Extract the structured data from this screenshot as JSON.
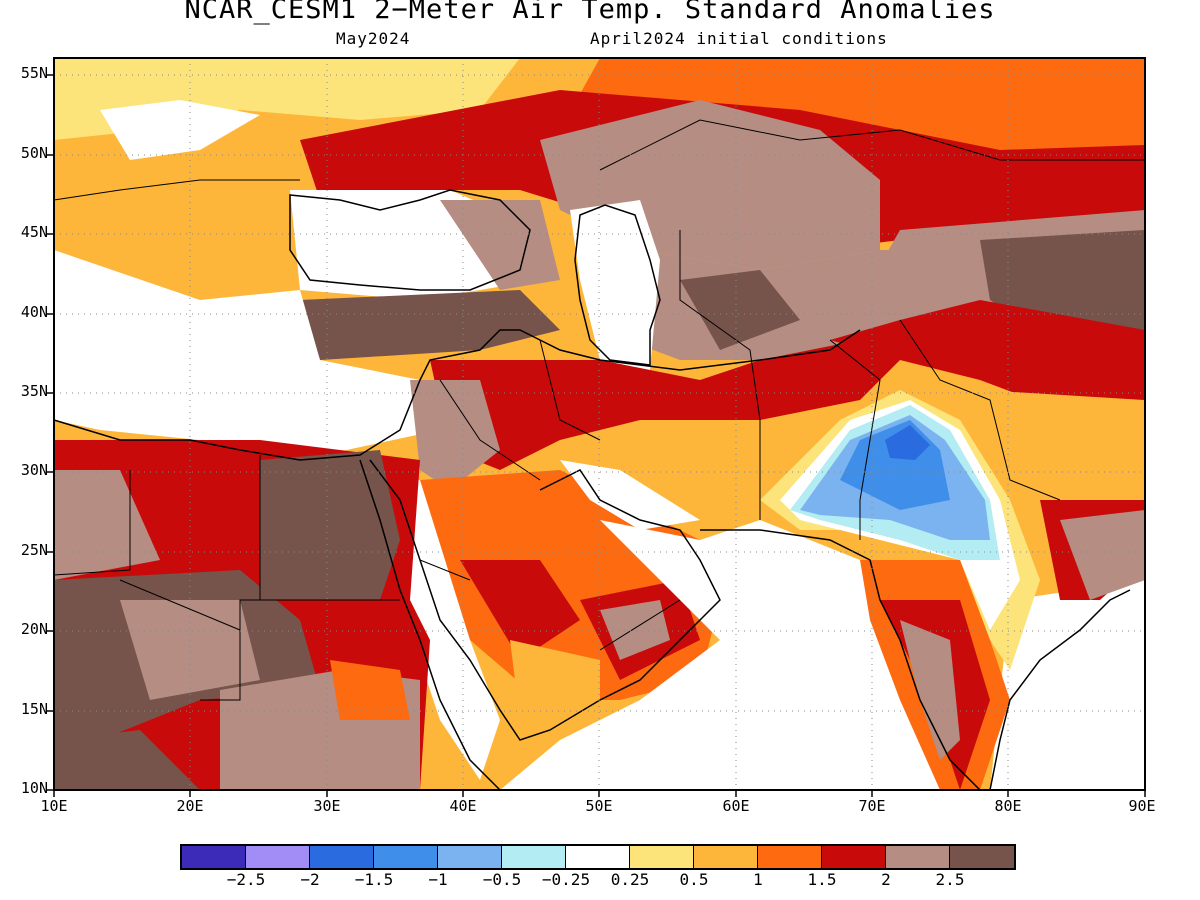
{
  "header": {
    "title": "NCAR_CESM1 2−Meter Air Temp. Standard Anomalies",
    "subtitle_left": "May2024",
    "subtitle_right": "April2024 initial conditions"
  },
  "map": {
    "projection": "lat-lon",
    "extent": {
      "lon_min": 10,
      "lon_max": 90,
      "lat_min": 10,
      "lat_max": 56
    },
    "lat_labels": [
      "55N",
      "50N",
      "45N",
      "40N",
      "35N",
      "30N",
      "25N",
      "20N",
      "15N",
      "10N"
    ],
    "lon_labels": [
      "10E",
      "20E",
      "30E",
      "40E",
      "50E",
      "60E",
      "70E",
      "80E",
      "90E"
    ],
    "gridlines": "dotted",
    "features": [
      "coastlines",
      "country-borders"
    ],
    "variable": "2-Meter Air Temperature Standard Anomaly"
  },
  "legend": {
    "colors": [
      "#3c2ab8",
      "#a28cf5",
      "#2a6be0",
      "#3f8fea",
      "#7ab3ef",
      "#b3ecf2",
      "#ffffff",
      "#fde47a",
      "#fdb63a",
      "#fd6a0f",
      "#c90a0a",
      "#b58d83",
      "#76534b"
    ],
    "labels": [
      "−2.5",
      "−2",
      "−1.5",
      "−1",
      "−0.5",
      "−0.25",
      "0.25",
      "0.5",
      "1",
      "1.5",
      "2",
      "2.5"
    ]
  }
}
